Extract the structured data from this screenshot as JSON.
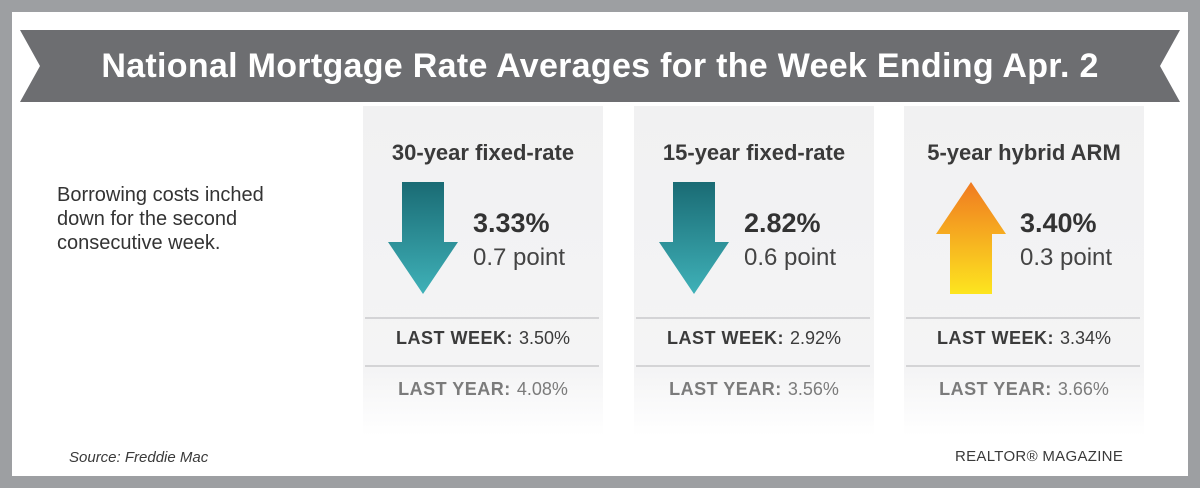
{
  "title": "National Mortgage Rate Averages for the Week Ending Apr. 2",
  "intro": "Borrowing costs inched\ndown for the second\nconsecutive week.",
  "panels": [
    {
      "heading": "30-year fixed-rate",
      "direction": "down",
      "arrow_icon": "down-arrow-icon",
      "rate": "3.33%",
      "change": "0.7 point",
      "last_week_label": "LAST WEEK:",
      "last_week_value": "3.50%",
      "last_year_label": "LAST YEAR:",
      "last_year_value": "4.08%"
    },
    {
      "heading": "15-year fixed-rate",
      "direction": "down",
      "arrow_icon": "down-arrow-icon",
      "rate": "2.82%",
      "change": "0.6 point",
      "last_week_label": "LAST WEEK:",
      "last_week_value": "2.92%",
      "last_year_label": "LAST YEAR:",
      "last_year_value": "3.56%"
    },
    {
      "heading": "5-year hybrid ARM",
      "direction": "up",
      "arrow_icon": "up-arrow-icon",
      "rate": "3.40%",
      "change": "0.3 point",
      "last_week_label": "LAST WEEK:",
      "last_week_value": "3.34%",
      "last_year_label": "LAST YEAR:",
      "last_year_value": "3.66%"
    }
  ],
  "source": "Source: Freddie Mac",
  "brand": "REALTOR® MAGAZINE",
  "colors": {
    "frame": "#9d9fa2",
    "banner": "#6d6e71",
    "down_arrow_top": "#1a6b74",
    "down_arrow_bottom": "#3fb1b8",
    "up_arrow_top": "#f07a21",
    "up_arrow_bottom": "#fde51f"
  }
}
